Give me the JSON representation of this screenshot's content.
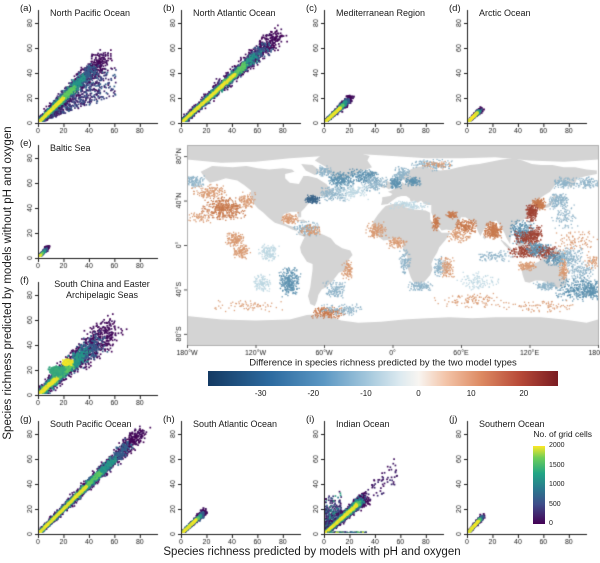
{
  "axes_labels": {
    "x": "Species richness predicted by models with pH and oxygen",
    "y": "Species richness predicted by models without pH and oxygen"
  },
  "chart_data": {
    "type": "multi-panel density scatter + world map",
    "axes": {
      "ticks": [
        0,
        20,
        40,
        60,
        80
      ],
      "lim": [
        0,
        88
      ]
    },
    "panels": [
      {
        "id": "a",
        "tag": "(a)",
        "title": "North Pacific Ocean",
        "density": {
          "diag": 52,
          "core": 20,
          "spread": 7,
          "slope": 1.0,
          "n": 3000,
          "fan": {
            "n": 600,
            "tmax": 44
          }
        }
      },
      {
        "id": "b",
        "tag": "(b)",
        "title": "North Atlantic Ocean",
        "density": {
          "diag": 76,
          "core": 42,
          "spread": 6.5,
          "slope": 0.92,
          "n": 3600
        }
      },
      {
        "id": "c",
        "tag": "(c)",
        "title": "Mediterranean Region",
        "density": {
          "diag": 21,
          "core": 13,
          "spread": 2.4,
          "slope": 0.95,
          "n": 1500,
          "point": 2
        }
      },
      {
        "id": "d",
        "tag": "(d)",
        "title": "Arctic Ocean",
        "density": {
          "diag": 11,
          "core": 8,
          "spread": 1.8,
          "slope": 1.0,
          "n": 1100,
          "point": 2,
          "weights": [
            0.18,
            0.12,
            0.1,
            0.15,
            0.45
          ]
        }
      },
      {
        "id": "e",
        "tag": "(e)",
        "title": "Baltic Sea",
        "density": {
          "diag": 8,
          "core": 2.5,
          "spread": 1.2,
          "slope": 1.1,
          "n": 700,
          "point": 2,
          "weights": [
            0.5,
            0.28,
            0.12,
            0.06,
            0.04
          ]
        }
      },
      {
        "id": "f",
        "tag": "(f)",
        "title": "South China and Easter Archipelagic Seas",
        "density": {
          "diag": 58,
          "core": 15,
          "spread": 10.5,
          "slope": 0.92,
          "n": 3400,
          "blobs": [
            {
              "x": 15,
              "y": 19,
              "rx": 6,
              "ry": 4,
              "level": 0.6,
              "n": 350
            },
            {
              "x": 23,
              "y": 26,
              "rx": 3.5,
              "ry": 2.2,
              "level": 0.97,
              "n": 260
            }
          ]
        }
      },
      {
        "id": "g",
        "tag": "(g)",
        "title": "South Pacific Ocean",
        "density": {
          "diag": 82,
          "core": 38,
          "spread": 5.5,
          "slope": 1.0,
          "n": 3800
        }
      },
      {
        "id": "h",
        "tag": "(h)",
        "title": "South Atlantic Ocean",
        "density": {
          "diag": 19,
          "core": 12,
          "spread": 2.2,
          "slope": 0.95,
          "n": 1300,
          "point": 2
        }
      },
      {
        "id": "i",
        "tag": "(i)",
        "title": "Indian Ocean",
        "density": {
          "diag": 32,
          "core": 26,
          "spread": 4.5,
          "slope": 0.9,
          "n": 2800,
          "upfan": {
            "n": 550
          },
          "strip": {
            "n": 280
          },
          "sparse": {
            "n": 130,
            "tmax": 58
          }
        }
      },
      {
        "id": "j",
        "tag": "(j)",
        "title": "Southern Ocean",
        "density": {
          "diag": 13,
          "core": 9,
          "spread": 1.9,
          "slope": 1.15,
          "n": 900,
          "point": 2,
          "weights": [
            0.25,
            0.15,
            0.12,
            0.14,
            0.34
          ]
        }
      }
    ],
    "map": {
      "lon_labels": [
        "180°W",
        "120°W",
        "60°W",
        "0°",
        "60°E",
        "120°E",
        "180°E"
      ],
      "lon_values": [
        -180,
        -120,
        -60,
        0,
        60,
        120,
        180
      ],
      "lat_labels": [
        "80°N",
        "40°N",
        "0°",
        "40°S",
        "80°S"
      ],
      "lat_values": [
        80,
        40,
        0,
        -40,
        -80
      ],
      "land_color": "#d4d4d4",
      "ocean_color": "#ffffff",
      "colorbar": {
        "title": "Difference in species richness predicted by the two model types",
        "ticks": [
          -30,
          -20,
          -10,
          0,
          10,
          20
        ],
        "range": [
          -40,
          26.5
        ],
        "negative_color": "#2d6ba0",
        "positive_color": "#b84a38"
      },
      "hotspot_colors": {
        "o": "#d99a72",
        "O": "#c97a4e",
        "r": "#a04434",
        "b": "#8fb4c9",
        "B": "#5e92b0",
        "d": "#39648a",
        "l": "#bdd7e2"
      },
      "hotspots": [
        [
          -148,
          33,
          15,
          8,
          "O",
          420
        ],
        [
          -160,
          48,
          12,
          5,
          "o",
          150
        ],
        [
          -128,
          40,
          6,
          6,
          "o",
          100
        ],
        [
          -138,
          5,
          6,
          5,
          "o",
          150
        ],
        [
          -132,
          -6,
          6,
          5,
          "o",
          120
        ],
        [
          -109,
          -7,
          7,
          6,
          "l",
          140
        ],
        [
          -114,
          -34,
          7,
          6,
          "l",
          120
        ],
        [
          -90,
          -33,
          7,
          10,
          "B",
          300
        ],
        [
          -170,
          25,
          10,
          5,
          "o",
          60
        ],
        [
          -175,
          57,
          9,
          4,
          "b",
          140
        ],
        [
          172,
          56,
          9,
          4,
          "b",
          110
        ],
        [
          150,
          56,
          8,
          4,
          "b",
          130
        ],
        [
          145,
          40,
          7,
          5,
          "b",
          150
        ],
        [
          128,
          37,
          5,
          4,
          "O",
          160
        ],
        [
          122,
          29,
          4,
          6,
          "r",
          200
        ],
        [
          113,
          12,
          8,
          8,
          "B",
          280
        ],
        [
          117,
          6,
          8,
          5,
          "r",
          170
        ],
        [
          125,
          10,
          5,
          6,
          "r",
          120
        ],
        [
          116,
          -6,
          11,
          4,
          "r",
          200
        ],
        [
          128,
          -4,
          8,
          5,
          "B",
          200
        ],
        [
          137,
          -7,
          8,
          5,
          "r",
          130
        ],
        [
          143,
          -12,
          8,
          5,
          "B",
          140
        ],
        [
          155,
          -12,
          10,
          8,
          "b",
          180
        ],
        [
          160,
          3,
          14,
          8,
          "o",
          90
        ],
        [
          165,
          -25,
          10,
          8,
          "b",
          120
        ],
        [
          162,
          -40,
          14,
          8,
          "B",
          260
        ],
        [
          174,
          -40,
          6,
          6,
          "B",
          160
        ],
        [
          150,
          25,
          10,
          8,
          "b",
          90
        ],
        [
          178,
          -15,
          8,
          5,
          "o",
          70
        ],
        [
          -70,
          41,
          5,
          3,
          "d",
          130
        ],
        [
          -52,
          46,
          9,
          5,
          "b",
          160
        ],
        [
          -45,
          58,
          10,
          6,
          "B",
          240
        ],
        [
          -25,
          62,
          10,
          5,
          "B",
          200
        ],
        [
          -15,
          55,
          8,
          6,
          "b",
          160
        ],
        [
          3,
          56,
          4,
          4,
          "B",
          140
        ],
        [
          18,
          57,
          5,
          3,
          "B",
          110
        ],
        [
          8,
          64,
          6,
          5,
          "b",
          120
        ],
        [
          35,
          72,
          15,
          4,
          "b",
          140
        ],
        [
          40,
          72,
          10,
          3,
          "o",
          60
        ],
        [
          -35,
          48,
          12,
          6,
          "l",
          150
        ],
        [
          -75,
          15,
          9,
          5,
          "b",
          140
        ],
        [
          -72,
          13,
          8,
          4,
          "o",
          80
        ],
        [
          -90,
          24,
          6,
          4,
          "o",
          110
        ],
        [
          -40,
          -23,
          4,
          7,
          "o",
          90
        ],
        [
          -50,
          -40,
          8,
          6,
          "b",
          130
        ],
        [
          -57,
          -61,
          12,
          4,
          "O",
          200
        ],
        [
          -45,
          -58,
          15,
          4,
          "b",
          120
        ],
        [
          -14,
          13,
          7,
          6,
          "o",
          140
        ],
        [
          4,
          2,
          7,
          4,
          "o",
          100
        ],
        [
          11,
          -15,
          4,
          9,
          "b",
          100
        ],
        [
          24,
          -37,
          8,
          3,
          "b",
          120
        ],
        [
          15,
          36,
          13,
          3,
          "l",
          120
        ],
        [
          38,
          20,
          2.5,
          6,
          "O",
          90
        ],
        [
          52,
          27,
          4,
          2.5,
          "O",
          80
        ],
        [
          88,
          13,
          6,
          6,
          "O",
          260
        ],
        [
          64,
          17,
          7,
          5,
          "O",
          180
        ],
        [
          58,
          8,
          8,
          5,
          "o",
          90
        ],
        [
          48,
          -20,
          5,
          8,
          "o",
          100
        ],
        [
          40,
          -20,
          3,
          7,
          "b",
          80
        ],
        [
          75,
          -33,
          14,
          7,
          "l",
          110
        ],
        [
          90,
          -10,
          12,
          4,
          "b",
          90
        ],
        [
          70,
          -50,
          25,
          5,
          "o",
          110
        ],
        [
          130,
          -55,
          25,
          4,
          "o",
          80
        ],
        [
          -130,
          -55,
          25,
          4,
          "o",
          70
        ],
        [
          118,
          -19,
          6,
          3,
          "o",
          110
        ],
        [
          134,
          -37,
          8,
          3,
          "b",
          110
        ],
        [
          150,
          -22,
          3,
          7,
          "o",
          100
        ],
        [
          -60,
          66,
          6,
          4,
          "b",
          90
        ]
      ]
    },
    "density_legend": {
      "title": "No. of grid cells",
      "ticks": [
        0,
        500,
        1000,
        1500,
        2000
      ],
      "range": [
        0,
        2000
      ],
      "colormap": "viridis"
    }
  }
}
